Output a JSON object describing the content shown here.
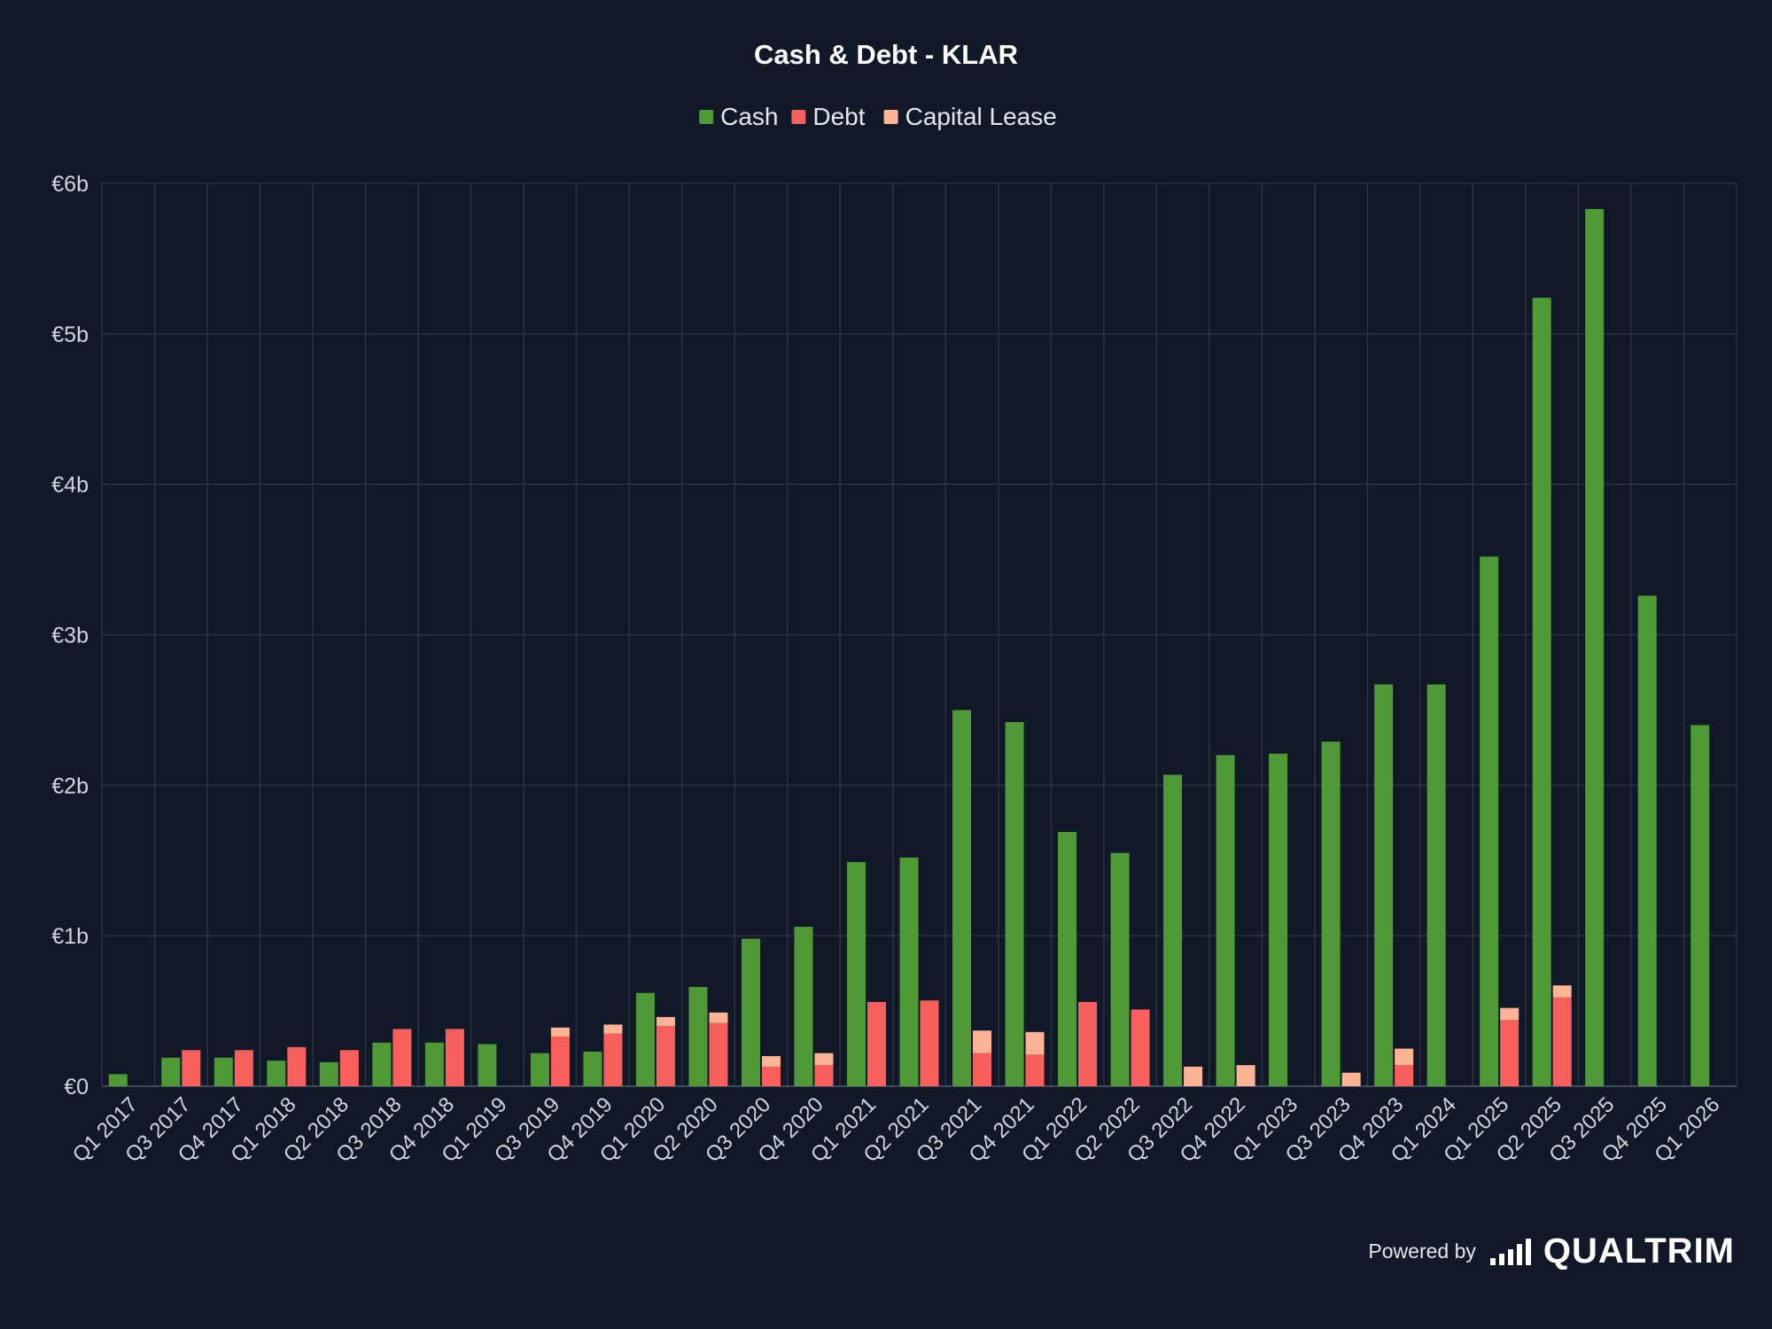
{
  "chart_data": {
    "type": "bar",
    "title": "Cash & Debt - KLAR",
    "xlabel": "",
    "ylabel": "",
    "categories": [
      "Q1 2017",
      "Q3 2017",
      "Q4 2017",
      "Q1 2018",
      "Q2 2018",
      "Q3 2018",
      "Q4 2018",
      "Q1 2019",
      "Q3 2019",
      "Q4 2019",
      "Q1 2020",
      "Q2 2020",
      "Q3 2020",
      "Q4 2020",
      "Q1 2021",
      "Q2 2021",
      "Q3 2021",
      "Q4 2021",
      "Q1 2022",
      "Q2 2022",
      "Q3 2022",
      "Q4 2022",
      "Q1 2023",
      "Q3 2023",
      "Q4 2023",
      "Q1 2024",
      "Q1 2025",
      "Q2 2025",
      "Q3 2025",
      "Q4 2025",
      "Q1 2026"
    ],
    "ylim": [
      0,
      6
    ],
    "yticks": [
      {
        "value": 0,
        "label": "€0"
      },
      {
        "value": 1,
        "label": "€1b"
      },
      {
        "value": 2,
        "label": "€2b"
      },
      {
        "value": 3,
        "label": "€3b"
      },
      {
        "value": 4,
        "label": "€4b"
      },
      {
        "value": 5,
        "label": "€5b"
      },
      {
        "value": 6,
        "label": "€6b"
      }
    ],
    "legend_position": "top-center",
    "grid": true,
    "series": [
      {
        "name": "Cash",
        "color": "#4f9a36",
        "stack": "cash",
        "values": [
          0.08,
          0.19,
          0.19,
          0.17,
          0.16,
          0.29,
          0.29,
          0.28,
          0.22,
          0.23,
          0.62,
          0.66,
          0.98,
          1.06,
          1.49,
          1.52,
          2.5,
          2.42,
          1.69,
          1.55,
          2.07,
          2.2,
          2.21,
          2.29,
          2.67,
          2.67,
          3.52,
          5.24,
          5.83,
          3.26,
          2.4
        ]
      },
      {
        "name": "Debt",
        "color": "#f8605d",
        "stack": "debt",
        "values": [
          0,
          0.24,
          0.24,
          0.26,
          0.24,
          0.38,
          0.38,
          0,
          0.33,
          0.35,
          0.4,
          0.42,
          0.13,
          0.14,
          0.56,
          0.57,
          0.22,
          0.21,
          0.56,
          0.51,
          0,
          0,
          0,
          0,
          0.14,
          0,
          0.44,
          0.59,
          0,
          0,
          0
        ]
      },
      {
        "name": "Capital Lease",
        "color": "#fdb495",
        "stack": "debt",
        "values": [
          0,
          0,
          0,
          0,
          0,
          0,
          0,
          0,
          0.06,
          0.06,
          0.06,
          0.07,
          0.07,
          0.08,
          0,
          0,
          0.15,
          0.15,
          0,
          0,
          0.13,
          0.14,
          0,
          0.09,
          0.11,
          0,
          0.08,
          0.08,
          0,
          0,
          0
        ]
      }
    ]
  },
  "footer": {
    "powered_label": "Powered by",
    "brand_name": "QUALTRIM"
  }
}
